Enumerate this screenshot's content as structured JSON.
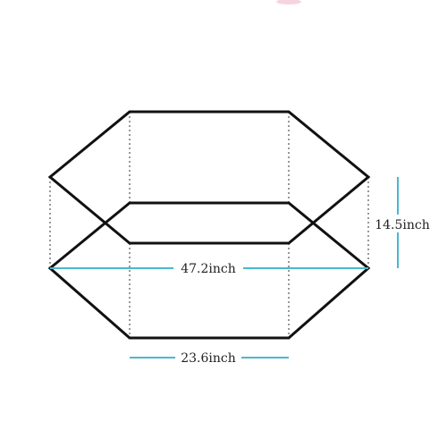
{
  "dimensions": {
    "width_label": "47.2inch",
    "base_label": "23.6inch",
    "height_label": "14.5inch"
  },
  "colors": {
    "outline": "#111111",
    "guide": "#555555",
    "measure": "#49b8d0",
    "text": "#222222"
  }
}
